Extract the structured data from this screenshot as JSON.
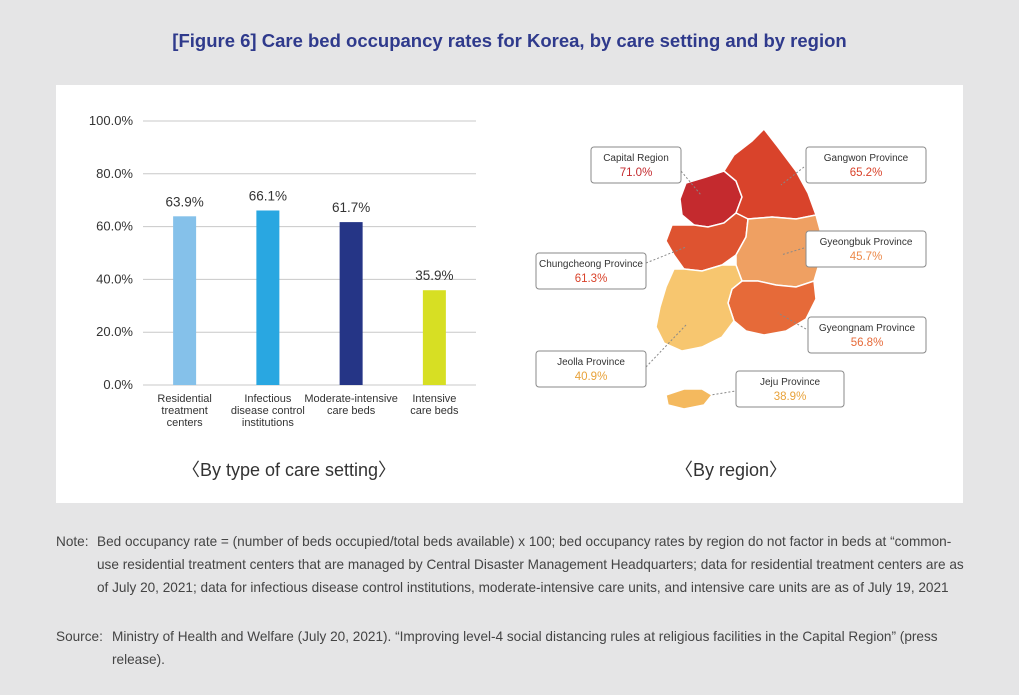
{
  "title": "[Figure 6] Care bed occupancy rates for Korea, by care setting and by region",
  "chart_data": [
    {
      "type": "bar",
      "categories": [
        [
          "Residential",
          "treatment",
          "centers"
        ],
        [
          "Infectious",
          "disease control",
          "institutions"
        ],
        [
          "Moderate-intensive",
          "care beds"
        ],
        [
          "Intensive",
          "care beds"
        ]
      ],
      "values": [
        63.9,
        66.1,
        61.7,
        35.9
      ],
      "value_labels": [
        "63.9%",
        "66.1%",
        "61.7%",
        "35.9%"
      ],
      "colors": [
        "#85c1ea",
        "#29a7e1",
        "#253586",
        "#d7df23"
      ],
      "ylim": [
        0,
        100
      ],
      "yticks": [
        0,
        20,
        40,
        60,
        80,
        100
      ],
      "ytick_labels": [
        "0.0%",
        "20.0%",
        "40.0%",
        "60.0%",
        "80.0%",
        "100.0%"
      ],
      "grid": true,
      "caption": "〈By type of care setting〉"
    },
    {
      "type": "map",
      "regions": [
        {
          "name": "Capital Region",
          "value_label": "71.0%",
          "value": 71.0,
          "color": "#c42a2e",
          "text_color": "#c42a2e"
        },
        {
          "name": "Gangwon Province",
          "value_label": "65.2%",
          "value": 65.2,
          "color": "#d9432b",
          "text_color": "#d9432b"
        },
        {
          "name": "Chungcheong Province",
          "value_label": "61.3%",
          "value": 61.3,
          "color": "#de5330",
          "text_color": "#d9432b"
        },
        {
          "name": "Gyeongbuk Province",
          "value_label": "45.7%",
          "value": 45.7,
          "color": "#efa062",
          "text_color": "#ec8a4a"
        },
        {
          "name": "Gyeongnam Province",
          "value_label": "56.8%",
          "value": 56.8,
          "color": "#e66a39",
          "text_color": "#e66a39"
        },
        {
          "name": "Jeolla Province",
          "value_label": "40.9%",
          "value": 40.9,
          "color": "#f7c66f",
          "text_color": "#e8a23a"
        },
        {
          "name": "Jeju Province",
          "value_label": "38.9%",
          "value": 38.9,
          "color": "#f4b95e",
          "text_color": "#e8a23a"
        }
      ],
      "caption": "〈By region〉"
    }
  ],
  "note": {
    "label": "Note:",
    "text": "Bed occupancy rate = (number of beds occupied/total beds available) x 100; bed occupancy rates by region do not factor in beds at “common-use residential treatment centers that are managed by Central Disaster Management Headquarters; data for residential treatment centers are as of July 20, 2021; data for infectious disease control institutions, moderate-intensive care units, and intensive care units are as of July 19, 2021"
  },
  "source": {
    "label": "Source:",
    "text": "Ministry of Health and Welfare (July 20, 2021). “Improving level-4 social distancing rules at religious facilities in the Capital Region” (press release)."
  }
}
